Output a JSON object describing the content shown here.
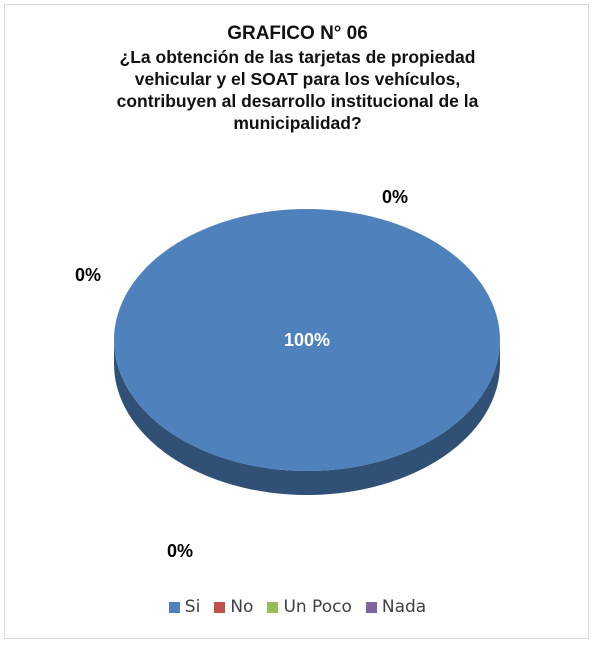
{
  "chart_data": {
    "type": "pie",
    "title": "GRAFICO N° 06",
    "subtitle_lines": [
      "¿La obtención de las tarjetas de propiedad",
      "vehicular y el SOAT para los vehículos,",
      "contribuyen al desarrollo institucional de la",
      "municipalidad?"
    ],
    "categories": [
      "Si",
      "No",
      "Un Poco",
      "Nada"
    ],
    "values": [
      100,
      0,
      0,
      0
    ],
    "data_labels": [
      "100%",
      "0%",
      "0%",
      "0%"
    ],
    "colors": [
      "#4f81bd",
      "#c0504d",
      "#9bbb59",
      "#8064a2"
    ],
    "legend_position": "bottom",
    "style": "3d"
  }
}
